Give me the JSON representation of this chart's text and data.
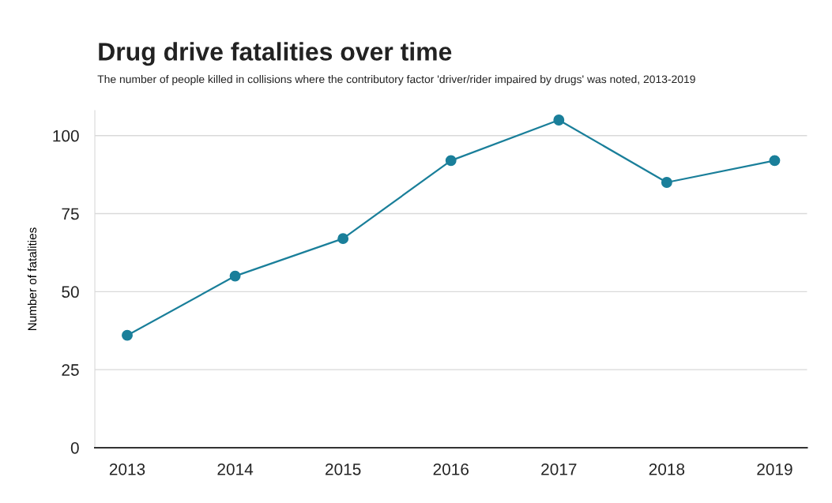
{
  "chart_data": {
    "type": "line",
    "title": "Drug drive fatalities over time",
    "subtitle": "The number of people killed in collisions where the contributory factor 'driver/rider impaired by drugs' was noted, 2013-2019",
    "ylabel": "Number of fatalities",
    "categories": [
      "2013",
      "2014",
      "2015",
      "2016",
      "2017",
      "2018",
      "2019"
    ],
    "series": [
      {
        "color": "#1a7f9a",
        "values": [
          36,
          55,
          67,
          92,
          105,
          85,
          92
        ]
      }
    ],
    "ylim": [
      0,
      108
    ],
    "yticks": [
      0,
      25,
      50,
      75,
      100
    ],
    "grid": "y",
    "marker": "circle",
    "line_style": "solid"
  }
}
